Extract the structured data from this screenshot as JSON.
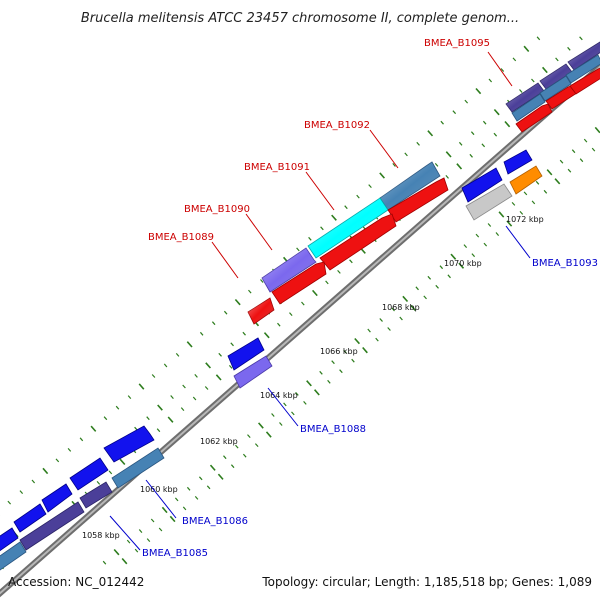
{
  "title": "Brucella melitensis ATCC 23457 chromosome II, complete genom...",
  "footer": {
    "accession": "Accession: NC_012442",
    "summary": "Topology: circular; Length: 1,185,518 bp; Genes: 1,089"
  },
  "colors": {
    "red_label": "#cc0000",
    "blue_label": "#0000cc",
    "backbone": "#8c8c8c",
    "tick_mark": "#2e7d1e"
  },
  "gene_labels": [
    {
      "id": "BMEA_B1095",
      "color": "red"
    },
    {
      "id": "BMEA_B1092",
      "color": "red"
    },
    {
      "id": "BMEA_B1091",
      "color": "red"
    },
    {
      "id": "BMEA_B1090",
      "color": "red"
    },
    {
      "id": "BMEA_B1089",
      "color": "red"
    },
    {
      "id": "BMEA_B1093",
      "color": "blue"
    },
    {
      "id": "BMEA_B1088",
      "color": "blue"
    },
    {
      "id": "BMEA_B1086",
      "color": "blue"
    },
    {
      "id": "BMEA_B1085",
      "color": "blue"
    }
  ],
  "ticks": [
    "1072 kbp",
    "1070 kbp",
    "1068 kbp",
    "1066 kbp",
    "1064 kbp",
    "1062 kbp",
    "1060 kbp",
    "1058 kbp"
  ]
}
